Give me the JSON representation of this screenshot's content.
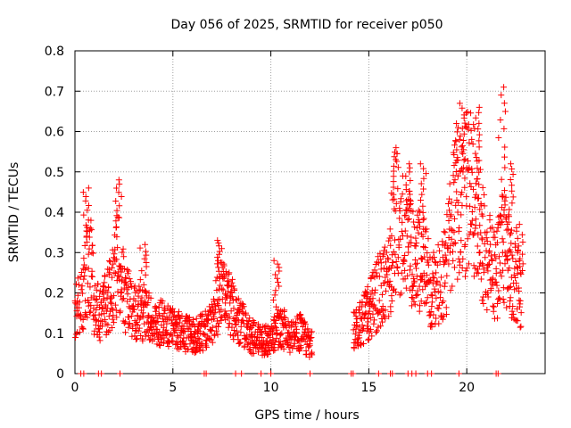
{
  "chart_data": {
    "type": "scatter",
    "title": "Day 056 of 2025, SRMTID for receiver p050",
    "xlabel": "GPS time / hours",
    "ylabel": "SRMTID / TECUs",
    "xlim": [
      0,
      24
    ],
    "ylim": [
      0,
      0.8
    ],
    "xticks": [
      0,
      5,
      10,
      15,
      20
    ],
    "yticks": [
      0,
      0.1,
      0.2,
      0.3,
      0.4,
      0.5,
      0.6,
      0.7,
      0.8
    ],
    "xtick_labels": [
      "0",
      "5",
      "10",
      "15",
      "20"
    ],
    "ytick_labels": [
      "0",
      "0.1",
      "0.2",
      "0.3",
      "0.4",
      "0.5",
      "0.6",
      "0.7",
      "0.8"
    ],
    "grid": true,
    "marker": "+",
    "color": "#ff0000",
    "series": [
      {
        "name": "SRMTID",
        "profile": [
          [
            0.0,
            0.15
          ],
          [
            0.3,
            0.17
          ],
          [
            0.6,
            0.24
          ],
          [
            0.8,
            0.26
          ],
          [
            1.0,
            0.17
          ],
          [
            1.3,
            0.14
          ],
          [
            1.6,
            0.17
          ],
          [
            2.0,
            0.22
          ],
          [
            2.2,
            0.27
          ],
          [
            2.6,
            0.18
          ],
          [
            3.0,
            0.15
          ],
          [
            3.5,
            0.14
          ],
          [
            4.0,
            0.13
          ],
          [
            4.5,
            0.12
          ],
          [
            5.0,
            0.11
          ],
          [
            5.5,
            0.1
          ],
          [
            6.0,
            0.09
          ],
          [
            6.5,
            0.1
          ],
          [
            7.0,
            0.12
          ],
          [
            7.5,
            0.21
          ],
          [
            8.0,
            0.16
          ],
          [
            8.5,
            0.12
          ],
          [
            9.0,
            0.09
          ],
          [
            9.5,
            0.08
          ],
          [
            10.0,
            0.08
          ],
          [
            10.5,
            0.12
          ],
          [
            11.0,
            0.09
          ],
          [
            11.5,
            0.1
          ],
          [
            12.0,
            0.07
          ],
          [
            14.3,
            0.11
          ],
          [
            14.7,
            0.13
          ],
          [
            15.2,
            0.17
          ],
          [
            15.7,
            0.22
          ],
          [
            16.1,
            0.24
          ],
          [
            16.4,
            0.37
          ],
          [
            16.8,
            0.33
          ],
          [
            17.3,
            0.28
          ],
          [
            17.8,
            0.27
          ],
          [
            18.2,
            0.2
          ],
          [
            18.6,
            0.22
          ],
          [
            19.0,
            0.27
          ],
          [
            19.4,
            0.4
          ],
          [
            19.8,
            0.42
          ],
          [
            20.2,
            0.47
          ],
          [
            20.6,
            0.36
          ],
          [
            21.0,
            0.28
          ],
          [
            21.5,
            0.23
          ],
          [
            21.9,
            0.32
          ],
          [
            22.2,
            0.25
          ],
          [
            22.5,
            0.22
          ],
          [
            22.8,
            0.18
          ]
        ],
        "peaks": [
          [
            0.6,
            0.46
          ],
          [
            2.2,
            0.48
          ],
          [
            3.5,
            0.32
          ],
          [
            7.4,
            0.33
          ],
          [
            10.3,
            0.28
          ],
          [
            16.3,
            0.56
          ],
          [
            17.0,
            0.52
          ],
          [
            17.8,
            0.52
          ],
          [
            19.5,
            0.62
          ],
          [
            19.8,
            0.67
          ],
          [
            20.5,
            0.66
          ],
          [
            21.8,
            0.71
          ],
          [
            22.2,
            0.52
          ],
          [
            22.7,
            0.37
          ]
        ],
        "gaps": [
          [
            12.1,
            14.2
          ]
        ]
      }
    ],
    "zero_markers_x": [
      0.3,
      0.45,
      1.2,
      1.35,
      2.3,
      6.6,
      6.7,
      8.2,
      8.5,
      9.5,
      10.0,
      12.0,
      14.1,
      14.2,
      15.5,
      16.1,
      16.2,
      17.0,
      17.2,
      17.4,
      18.0,
      18.2,
      19.6,
      21.5,
      21.6
    ]
  }
}
